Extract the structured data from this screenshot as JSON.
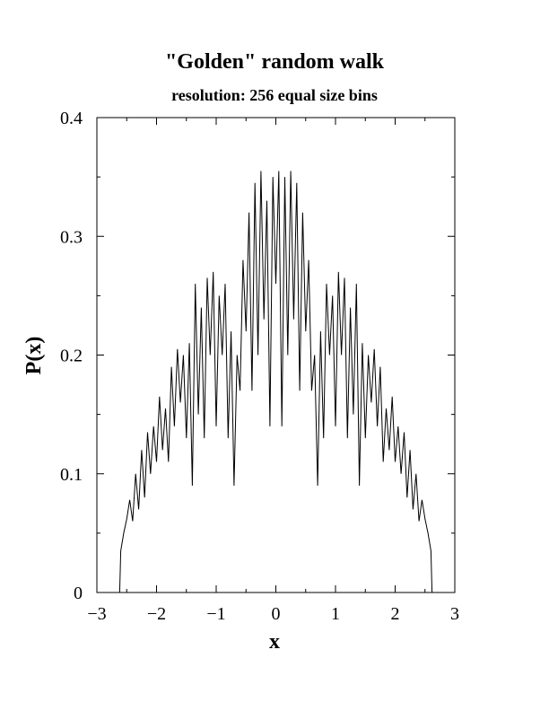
{
  "chart_data": {
    "type": "line",
    "title": "\"Golden\" random walk",
    "subtitle": "resolution: 256 equal size bins",
    "xlabel": "x",
    "ylabel": "P(x)",
    "xlim": [
      -3,
      3
    ],
    "ylim": [
      0,
      0.4
    ],
    "xticks": [
      -3,
      -2,
      -1,
      0,
      1,
      2,
      3
    ],
    "xtick_labels": [
      "−3",
      "−2",
      "−1",
      "0",
      "1",
      "2",
      "3"
    ],
    "yticks": [
      0,
      0.1,
      0.2,
      0.3,
      0.4
    ],
    "ytick_labels": [
      "0",
      "0.1",
      "0.2",
      "0.3",
      "0.4"
    ],
    "grid": false,
    "series": [
      {
        "x": [
          -2.618,
          -2.6,
          -2.55,
          -2.5,
          -2.45,
          -2.4,
          -2.35,
          -2.3,
          -2.25,
          -2.2,
          -2.15,
          -2.1,
          -2.05,
          -2.0,
          -1.95,
          -1.9,
          -1.85,
          -1.8,
          -1.75,
          -1.7,
          -1.65,
          -1.6,
          -1.55,
          -1.5,
          -1.45,
          -1.4,
          -1.35,
          -1.3,
          -1.25,
          -1.2,
          -1.15,
          -1.1,
          -1.05,
          -1.0,
          -0.95,
          -0.9,
          -0.85,
          -0.8,
          -0.75,
          -0.7,
          -0.65,
          -0.6,
          -0.55,
          -0.5,
          -0.45,
          -0.4,
          -0.35,
          -0.3,
          -0.25,
          -0.2,
          -0.15,
          -0.1,
          -0.05,
          0.0,
          0.05,
          0.1,
          0.15,
          0.2,
          0.25,
          0.3,
          0.35,
          0.4,
          0.45,
          0.5,
          0.55,
          0.6,
          0.65,
          0.7,
          0.75,
          0.8,
          0.85,
          0.9,
          0.95,
          1.0,
          1.05,
          1.1,
          1.15,
          1.2,
          1.25,
          1.3,
          1.35,
          1.4,
          1.45,
          1.5,
          1.55,
          1.6,
          1.65,
          1.7,
          1.75,
          1.8,
          1.85,
          1.9,
          1.95,
          2.0,
          2.05,
          2.1,
          2.15,
          2.2,
          2.25,
          2.3,
          2.35,
          2.4,
          2.45,
          2.5,
          2.55,
          2.6,
          2.618
        ],
        "y": [
          0.0,
          0.035,
          0.05,
          0.062,
          0.078,
          0.06,
          0.1,
          0.07,
          0.12,
          0.08,
          0.135,
          0.1,
          0.14,
          0.11,
          0.165,
          0.12,
          0.155,
          0.11,
          0.19,
          0.14,
          0.205,
          0.16,
          0.2,
          0.13,
          0.21,
          0.09,
          0.26,
          0.15,
          0.24,
          0.13,
          0.265,
          0.2,
          0.27,
          0.14,
          0.25,
          0.2,
          0.26,
          0.13,
          0.22,
          0.09,
          0.2,
          0.17,
          0.28,
          0.22,
          0.32,
          0.17,
          0.345,
          0.2,
          0.355,
          0.23,
          0.33,
          0.14,
          0.35,
          0.26,
          0.355,
          0.14,
          0.35,
          0.2,
          0.355,
          0.23,
          0.345,
          0.17,
          0.32,
          0.22,
          0.28,
          0.17,
          0.2,
          0.09,
          0.22,
          0.13,
          0.26,
          0.2,
          0.25,
          0.14,
          0.27,
          0.2,
          0.265,
          0.13,
          0.24,
          0.15,
          0.26,
          0.09,
          0.21,
          0.13,
          0.2,
          0.16,
          0.205,
          0.14,
          0.19,
          0.11,
          0.155,
          0.12,
          0.165,
          0.11,
          0.14,
          0.1,
          0.135,
          0.08,
          0.12,
          0.07,
          0.1,
          0.06,
          0.078,
          0.062,
          0.05,
          0.035,
          0.0
        ]
      }
    ]
  }
}
